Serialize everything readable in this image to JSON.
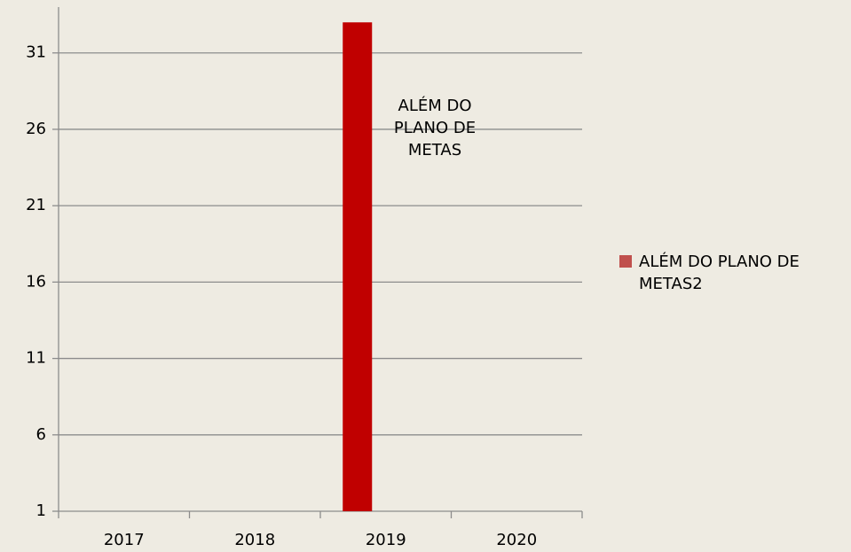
{
  "chart_data": {
    "type": "bar",
    "categories": [
      "2017",
      "2018",
      "2019",
      "2020"
    ],
    "series": [
      {
        "name": "ALÉM DO PLANO DE METAS2",
        "color": "#c00000",
        "values": [
          null,
          null,
          33,
          null
        ]
      }
    ],
    "annotation": "ALÉM DO PLANO DE METAS",
    "ylim": [
      1,
      34
    ],
    "yticks": [
      1,
      6,
      11,
      16,
      21,
      26,
      31
    ],
    "grid": true,
    "legend": "right"
  }
}
